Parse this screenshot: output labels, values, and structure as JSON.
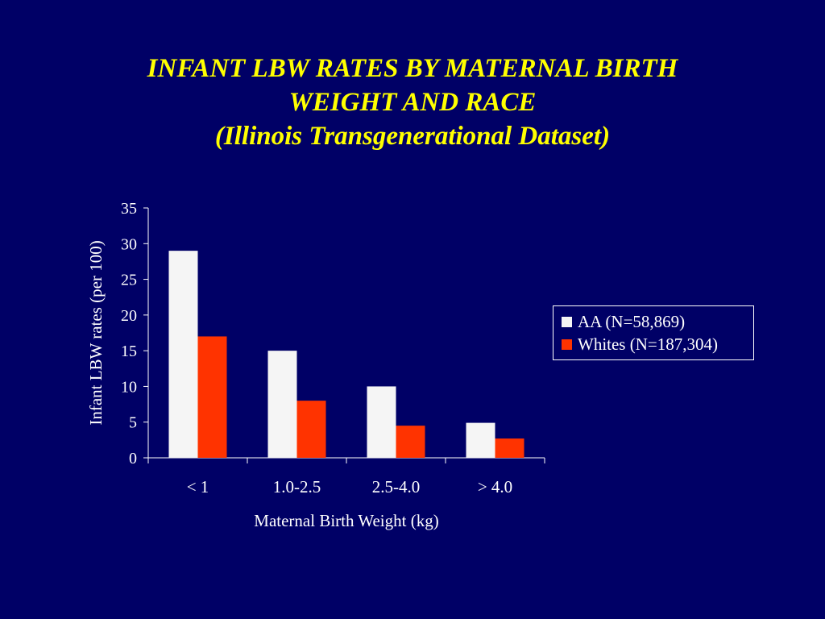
{
  "slide": {
    "title_line1": "INFANT LBW RATES BY MATERNAL BIRTH",
    "title_line2": "WEIGHT AND RACE",
    "title_line3": "(Illinois Transgenerational Dataset)"
  },
  "colors": {
    "background": "#000066",
    "title": "#ffff00",
    "text": "#ffffff",
    "series_aa": "#f5f5f5",
    "series_whites": "#ff3300"
  },
  "chart_data": {
    "type": "bar",
    "title": "INFANT LBW RATES BY MATERNAL BIRTH WEIGHT AND RACE (Illinois Transgenerational Dataset)",
    "xlabel": "Maternal Birth Weight (kg)",
    "ylabel": "Infant LBW rates (per 100)",
    "categories": [
      "< 1",
      "1.0-2.5",
      "2.5-4.0",
      "> 4.0"
    ],
    "series": [
      {
        "name": "AA (N=58,869)",
        "values": [
          29,
          15,
          10,
          4.9
        ],
        "color": "#f5f5f5"
      },
      {
        "name": "Whites (N=187,304)",
        "values": [
          17,
          8,
          4.5,
          2.7
        ],
        "color": "#ff3300"
      }
    ],
    "ylim": [
      0,
      35
    ],
    "yticks": [
      0,
      5,
      10,
      15,
      20,
      25,
      30,
      35
    ],
    "grid": false,
    "legend": "right"
  }
}
